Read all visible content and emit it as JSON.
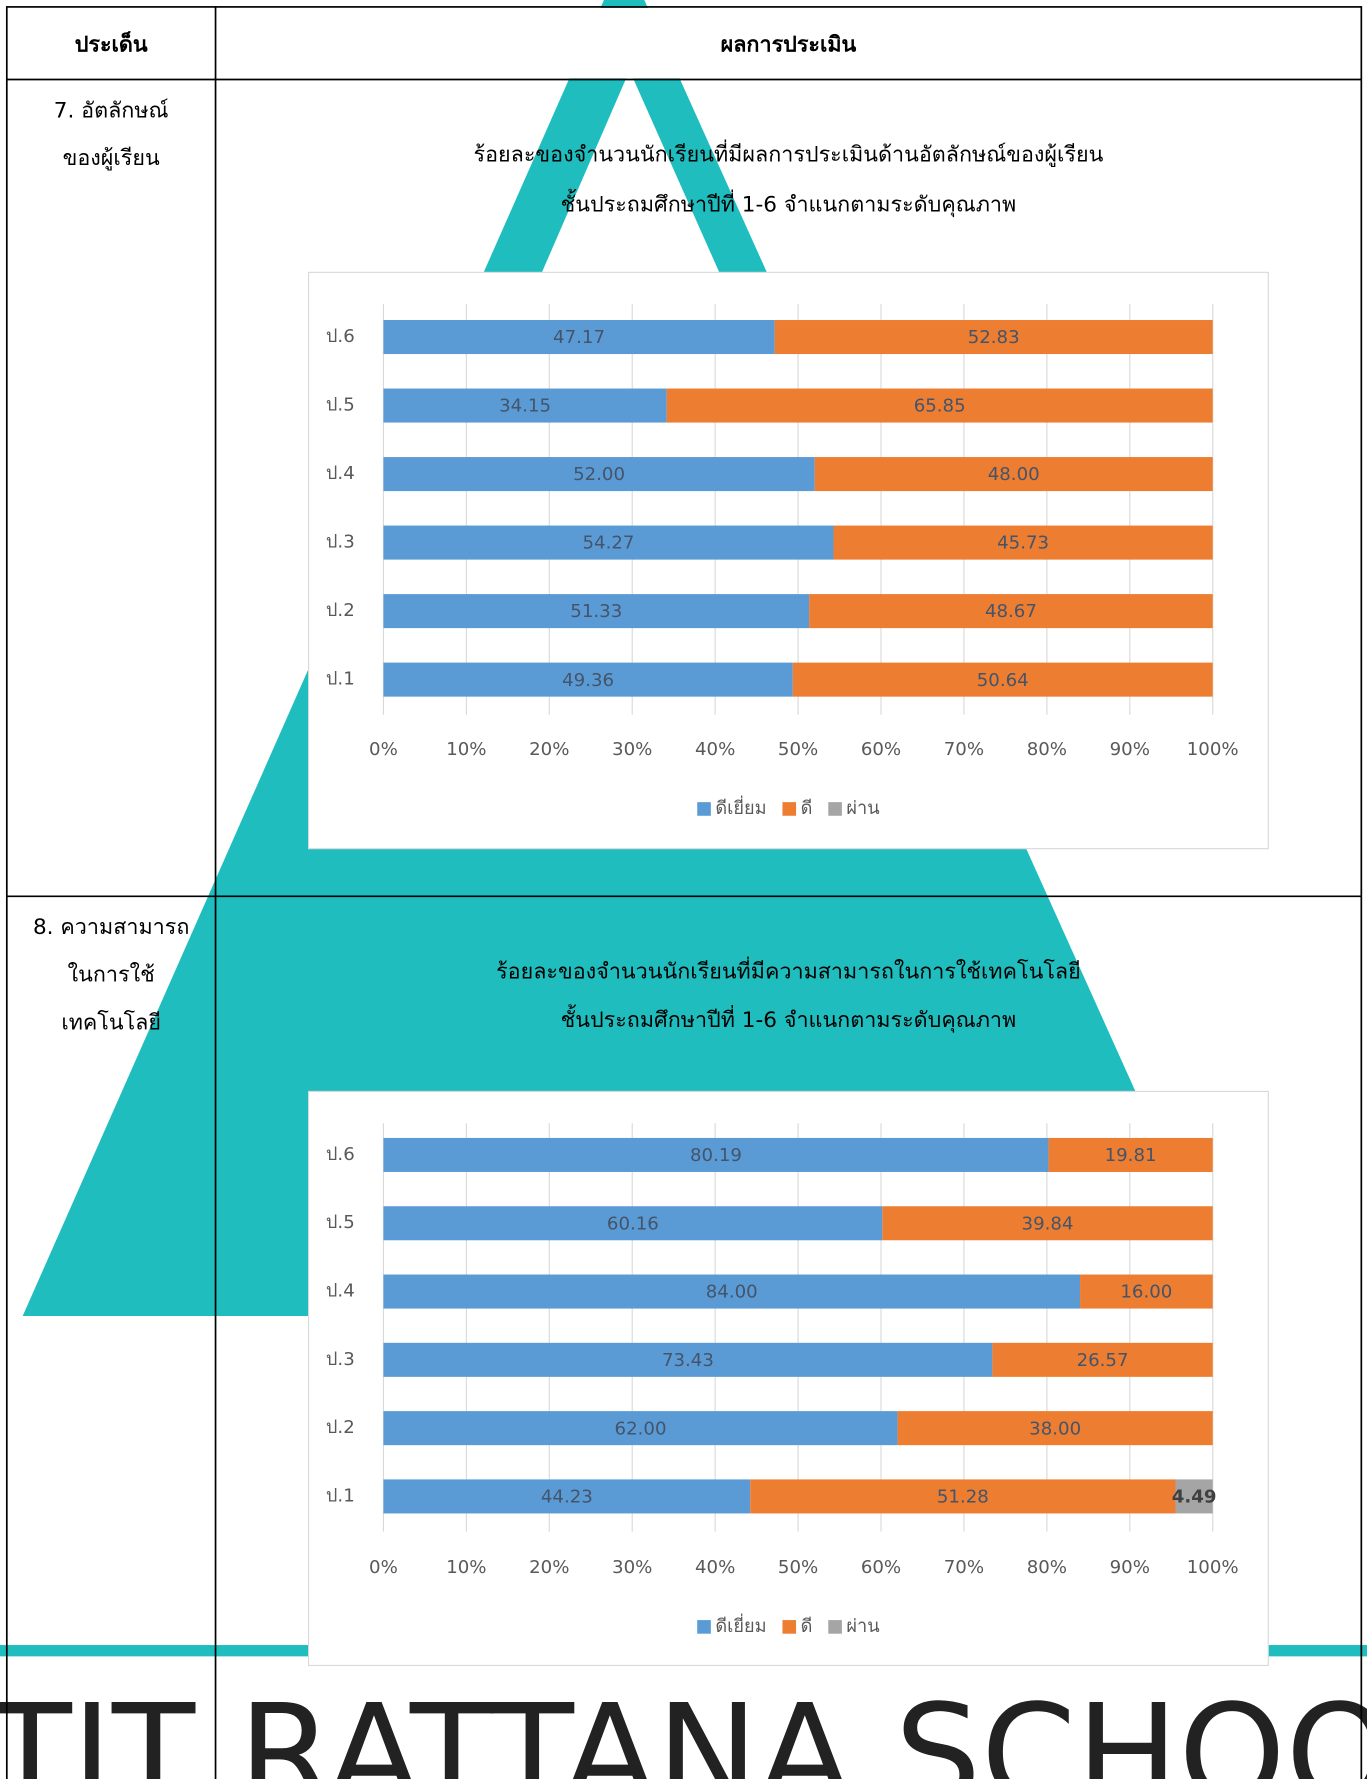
{
  "table": {
    "headers": [
      "ประเด็น",
      "ผลการประเมิน"
    ],
    "row_labels": [
      [
        "7. อัตลักษณ์",
        "ของผู้เรียน"
      ],
      [
        "8. ความสามารถ",
        "ในการใช้",
        "เทคโนโลยี"
      ]
    ]
  },
  "watermark_text": "TIT RATTANA SCHOO",
  "chart_data": [
    {
      "type": "bar",
      "orientation": "horizontal",
      "stacked": true,
      "title": [
        "ร้อยละของจำนวนนักเรียนที่มีผลการประเมินด้านอัตลักษณ์ของผู้เรียน",
        "ชั้นประถมศึกษาปีที่ 1-6 จำแนกตามระดับคุณภาพ"
      ],
      "categories": [
        "ป.1",
        "ป.2",
        "ป.3",
        "ป.4",
        "ป.5",
        "ป.6"
      ],
      "series": [
        {
          "name": "ดีเยี่ยม",
          "color": "#5b9bd5",
          "values": [
            49.36,
            51.33,
            54.27,
            52,
            34.15,
            47.17
          ],
          "value_labels": [
            "49.36",
            "51.33",
            "54.27",
            "52.00",
            "34.15",
            "47.17"
          ]
        },
        {
          "name": "ดี",
          "color": "#ed7d31",
          "values": [
            50.64,
            48.67,
            45.73,
            48,
            65.85,
            52.83
          ],
          "value_labels": [
            "50.64",
            "48.67",
            "45.73",
            "48.00",
            "65.85",
            "52.83"
          ]
        },
        {
          "name": "ผ่าน",
          "color": "#a5a5a5",
          "values": [
            null,
            null,
            null,
            null,
            null,
            null
          ]
        }
      ],
      "xlim": [
        0,
        100
      ],
      "xticks": [
        {
          "value": 0,
          "label": "0%"
        },
        {
          "value": 10,
          "label": "10%"
        },
        {
          "value": 20,
          "label": "20%"
        },
        {
          "value": 30,
          "label": "30%"
        },
        {
          "value": 40,
          "label": "40%"
        },
        {
          "value": 50,
          "label": "50%"
        },
        {
          "value": 60,
          "label": "60%"
        },
        {
          "value": 70,
          "label": "70%"
        },
        {
          "value": 80,
          "label": "80%"
        },
        {
          "value": 90,
          "label": "90%"
        },
        {
          "value": 100,
          "label": "100%"
        }
      ],
      "grid": true,
      "legend": "bottom"
    },
    {
      "type": "bar",
      "orientation": "horizontal",
      "stacked": true,
      "title": [
        "ร้อยละของจำนวนนักเรียนที่มีความสามารถในการใช้เทคโนโลยี",
        "ชั้นประถมศึกษาปีที่ 1-6  จำแนกตามระดับคุณภาพ"
      ],
      "categories": [
        "ป.1",
        "ป.2",
        "ป.3",
        "ป.4",
        "ป.5",
        "ป.6"
      ],
      "series": [
        {
          "name": "ดีเยี่ยม",
          "color": "#5b9bd5",
          "values": [
            44.23,
            62,
            73.43,
            84,
            60.16,
            80.19
          ],
          "value_labels": [
            "44.23",
            "62.00",
            "73.43",
            "84.00",
            "60.16",
            "80.19"
          ]
        },
        {
          "name": "ดี",
          "color": "#ed7d31",
          "values": [
            51.28,
            38,
            26.57,
            16,
            39.84,
            19.81
          ],
          "value_labels": [
            "51.28",
            "38.00",
            "26.57",
            "16.00",
            "39.84",
            "19.81"
          ]
        },
        {
          "name": "ผ่าน",
          "color": "#a5a5a5",
          "values": [
            4.49,
            null,
            null,
            null,
            null,
            null
          ]
        }
      ],
      "xlim": [
        0,
        100
      ],
      "xticks": [
        {
          "value": 0,
          "label": "0%"
        },
        {
          "value": 10,
          "label": "10%"
        },
        {
          "value": 20,
          "label": "20%"
        },
        {
          "value": 30,
          "label": "30%"
        },
        {
          "value": 40,
          "label": "40%"
        },
        {
          "value": 50,
          "label": "50%"
        },
        {
          "value": 60,
          "label": "60%"
        },
        {
          "value": 70,
          "label": "70%"
        },
        {
          "value": 80,
          "label": "80%"
        },
        {
          "value": 90,
          "label": "90%"
        },
        {
          "value": 100,
          "label": "100%"
        }
      ],
      "grid": true,
      "legend": "bottom"
    }
  ]
}
